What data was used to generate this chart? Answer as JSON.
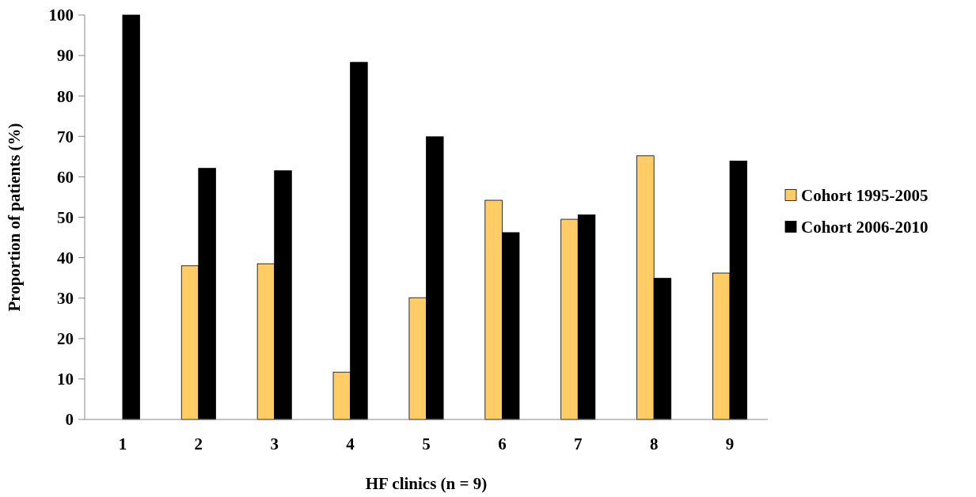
{
  "chart_data": {
    "type": "bar",
    "xlabel": "HF clinics (n = 9)",
    "ylabel": "Proportion of patients (%)",
    "categories": [
      "1",
      "2",
      "3",
      "4",
      "5",
      "6",
      "7",
      "8",
      "9"
    ],
    "series": [
      {
        "name": "Cohort 1995-2005",
        "color": "#ffcc66",
        "values": [
          null,
          38.0,
          38.5,
          11.7,
          30.1,
          54.2,
          49.5,
          65.2,
          36.2
        ]
      },
      {
        "name": "Cohort 2006-2010",
        "color": "#000000",
        "values": [
          100,
          62.1,
          61.5,
          88.3,
          69.9,
          46.2,
          50.6,
          34.9,
          63.9
        ]
      }
    ],
    "ylim": [
      0,
      100
    ],
    "yticks": [
      0,
      10,
      20,
      30,
      40,
      50,
      60,
      70,
      80,
      90,
      100
    ],
    "grid": false,
    "legend": "right"
  }
}
